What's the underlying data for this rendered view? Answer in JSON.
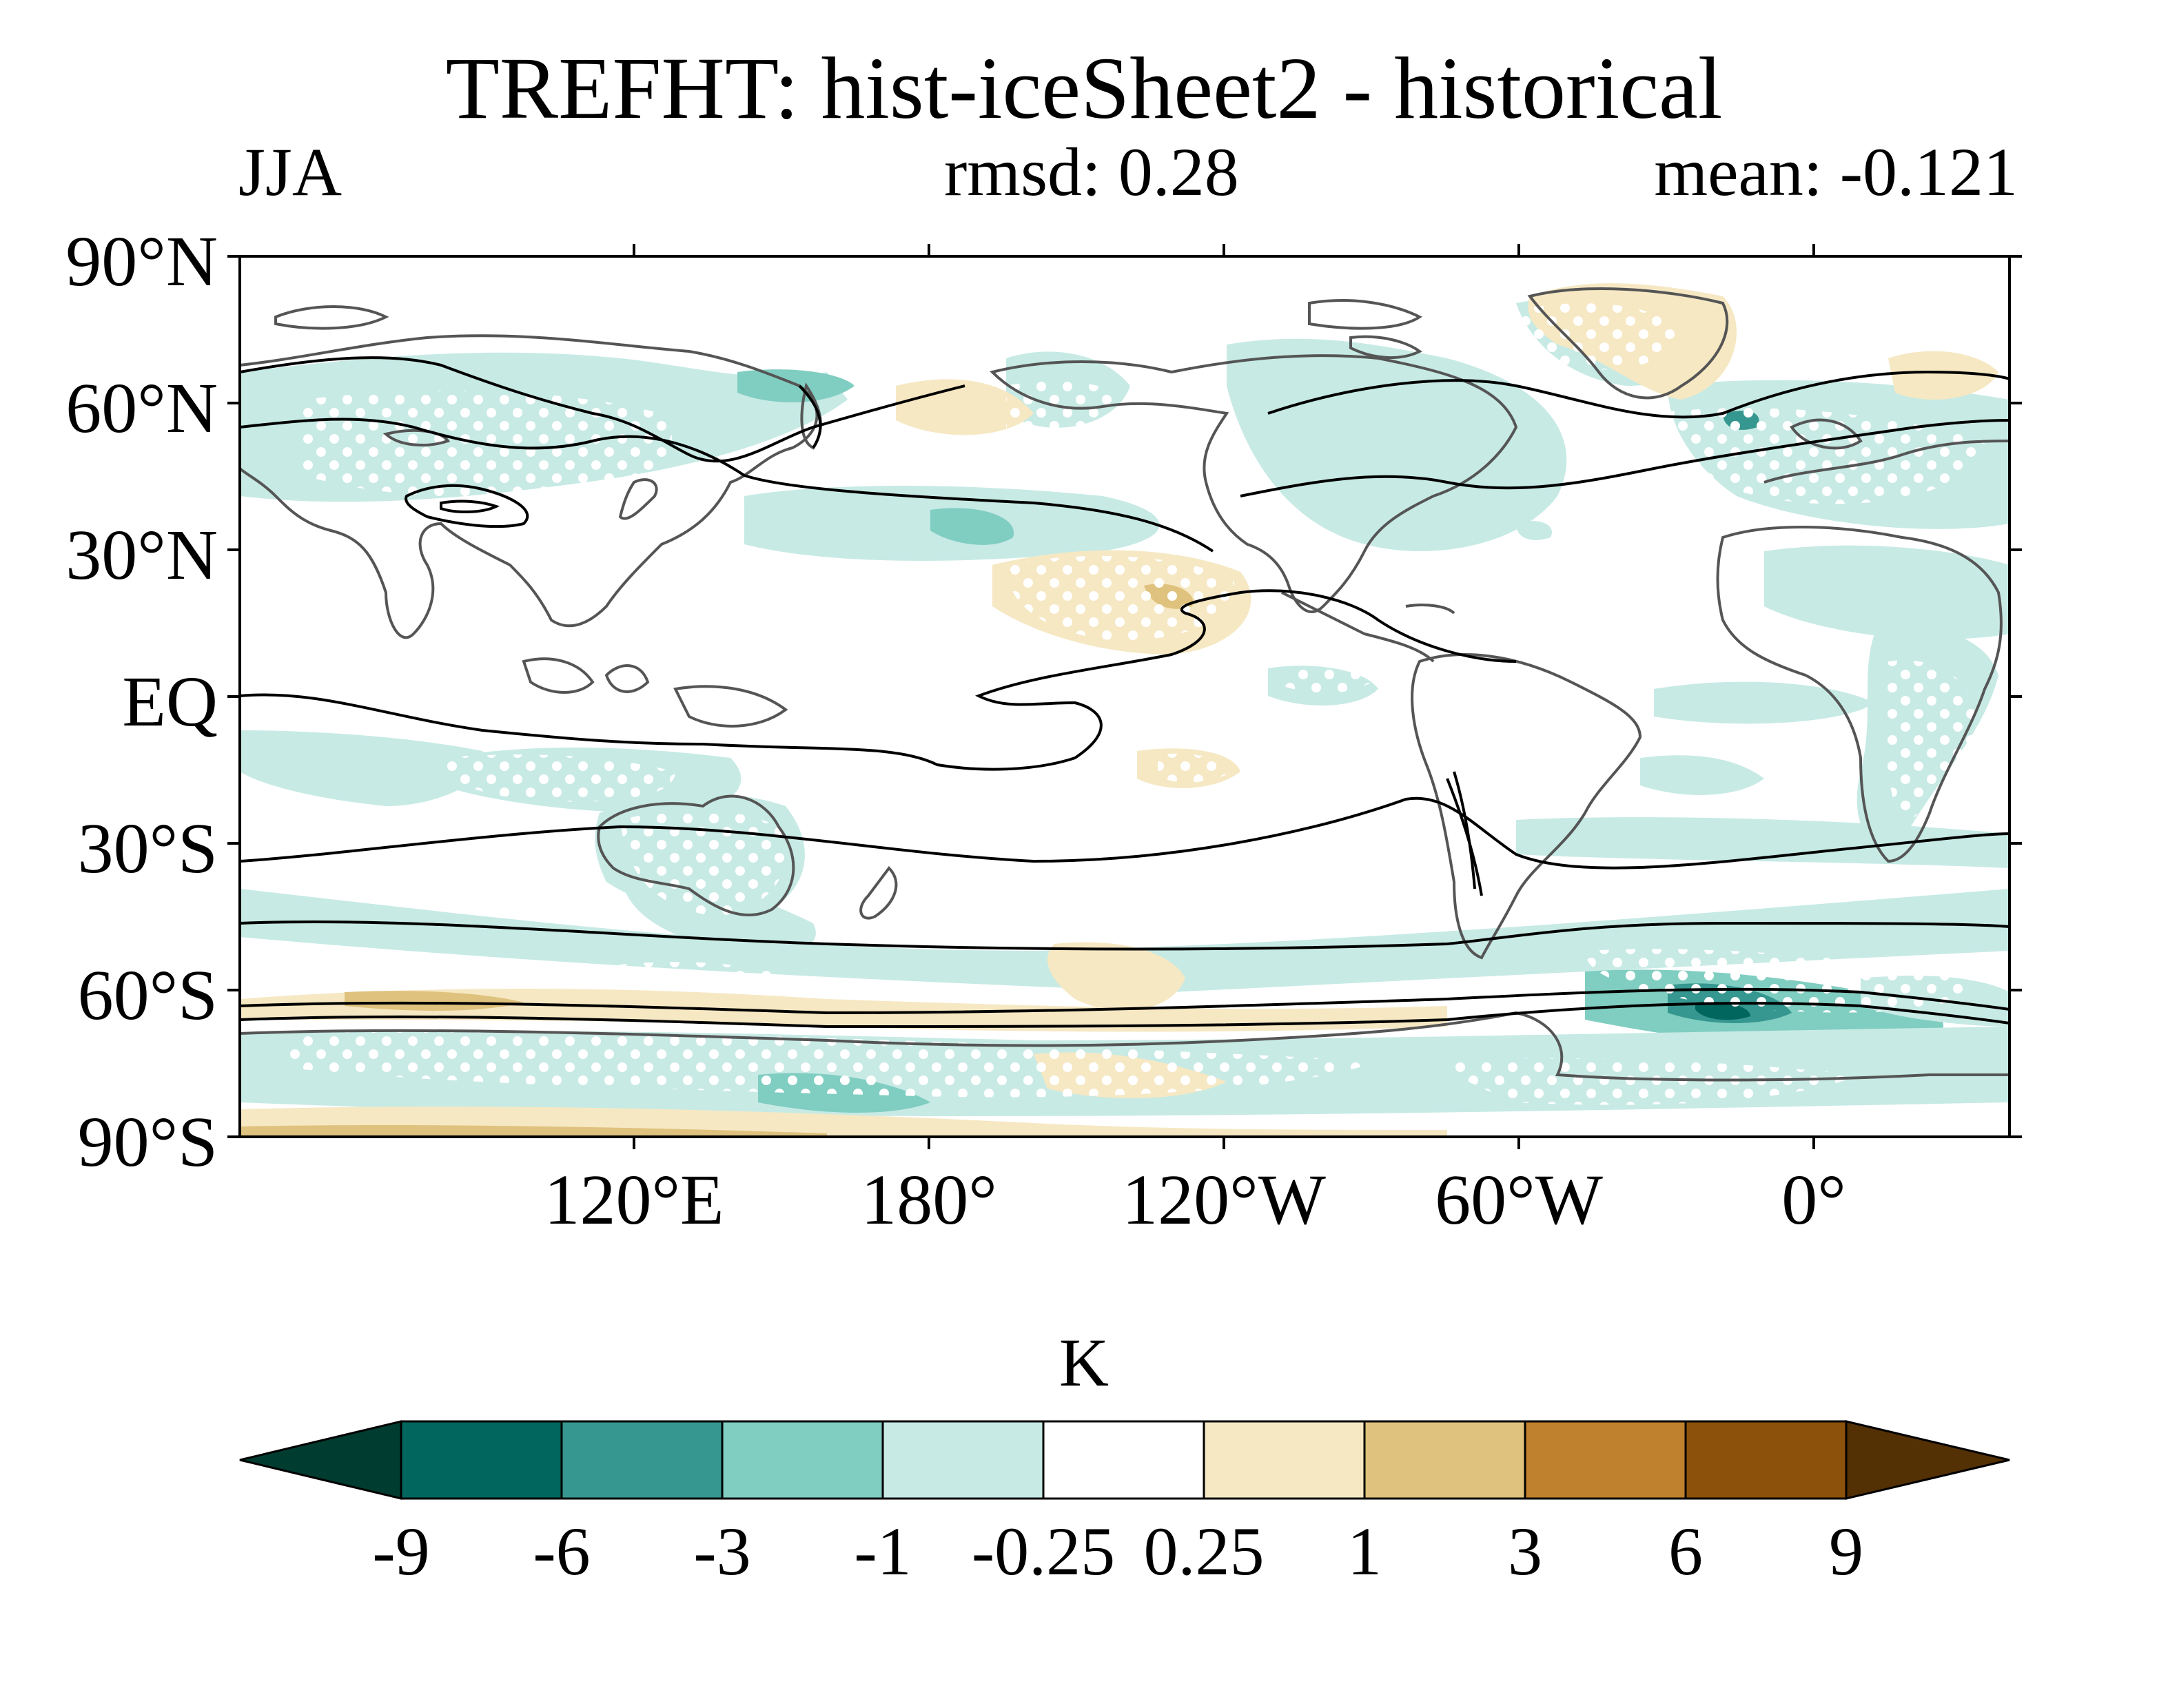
{
  "title": "TREFHT: hist-iceSheet2 - historical",
  "season": "JJA",
  "rmsd_text": "rmsd: 0.28",
  "mean_text": "mean: -0.121",
  "lat_labels": [
    "90°N",
    "60°N",
    "30°N",
    "EQ",
    "30°S",
    "60°S",
    "90°S"
  ],
  "lon_labels": [
    "120°E",
    "180°",
    "120°W",
    "60°W",
    "0°"
  ],
  "colorbar": {
    "unit": "K",
    "levels": [
      "-9",
      "-6",
      "-3",
      "-1",
      "-0.25",
      "0.25",
      "1",
      "3",
      "6",
      "9"
    ],
    "colors": [
      "#003c30",
      "#01665e",
      "#35978f",
      "#80cdc1",
      "#c7eae5",
      "#ffffff",
      "#f6e8c3",
      "#dfc27d",
      "#bf812d",
      "#8c510a",
      "#543005"
    ]
  },
  "map_colors": {
    "cool_light": "#c7eae5",
    "cool_mid": "#80cdc1",
    "cool_dark": "#35978f",
    "warm_light": "#f6e8c3",
    "warm_mid": "#dfc27d",
    "coastline": "#555555",
    "contour": "#000000",
    "frame": "#000000"
  }
}
